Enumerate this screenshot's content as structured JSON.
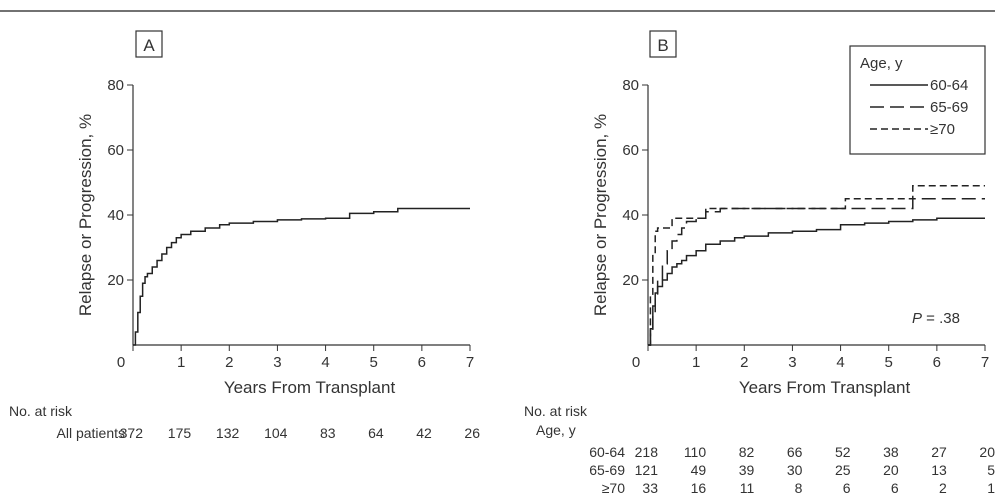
{
  "chart_data": [
    {
      "type": "line",
      "panel_label": "A",
      "xlabel": "Years From Transplant",
      "ylabel": "Relapse or Progression, %",
      "xlim": [
        0,
        7
      ],
      "ylim": [
        0,
        80
      ],
      "xticks": [
        0,
        1,
        2,
        3,
        4,
        5,
        6,
        7
      ],
      "yticks": [
        20,
        40,
        60,
        80
      ],
      "step": true,
      "series": [
        {
          "x": [
            0,
            0.05,
            0.1,
            0.15,
            0.2,
            0.25,
            0.3,
            0.4,
            0.5,
            0.6,
            0.7,
            0.8,
            0.9,
            1.0,
            1.2,
            1.5,
            1.8,
            2.0,
            2.5,
            3.0,
            3.5,
            4.0,
            4.5,
            5.0,
            5.5,
            6.0,
            7.0
          ],
          "values": [
            0,
            4,
            10,
            15,
            19,
            21,
            22,
            24,
            26,
            28,
            30,
            31.5,
            33,
            34,
            35,
            36,
            37,
            37.5,
            38,
            38.5,
            38.8,
            39,
            40.5,
            41,
            42,
            42,
            42
          ]
        }
      ],
      "risk_table": {
        "title": "No. at risk",
        "rows": [
          {
            "label": "All patients",
            "values": [
              "372",
              "175",
              "132",
              "104",
              "83",
              "64",
              "42",
              "26"
            ]
          }
        ]
      }
    },
    {
      "type": "line",
      "panel_label": "B",
      "xlabel": "Years From Transplant",
      "ylabel": "Relapse or Progression, %",
      "xlim": [
        0,
        7
      ],
      "ylim": [
        0,
        80
      ],
      "xticks": [
        0,
        1,
        2,
        3,
        4,
        5,
        6,
        7
      ],
      "yticks": [
        20,
        40,
        60,
        80
      ],
      "step": true,
      "legend": {
        "title": "Age, y",
        "position": "top-right"
      },
      "annotation": {
        "italic": "P",
        "text": " = .38"
      },
      "series": [
        {
          "name": "60-64",
          "dash": "",
          "x": [
            0,
            0.05,
            0.1,
            0.15,
            0.2,
            0.3,
            0.4,
            0.5,
            0.6,
            0.7,
            0.8,
            1.0,
            1.2,
            1.5,
            1.8,
            2.0,
            2.5,
            3.0,
            3.5,
            4.0,
            4.5,
            5.0,
            5.5,
            6.0,
            7.0
          ],
          "values": [
            0,
            5,
            12,
            16,
            18,
            20,
            22,
            24,
            25,
            26,
            27.5,
            29,
            31,
            32,
            33,
            33.5,
            34.5,
            35,
            35.5,
            37,
            37.5,
            38,
            38.5,
            39,
            39
          ]
        },
        {
          "name": "65-69",
          "dash": "14,6",
          "x": [
            0,
            0.05,
            0.1,
            0.15,
            0.2,
            0.3,
            0.4,
            0.5,
            0.6,
            0.7,
            0.8,
            1.0,
            1.2,
            1.5,
            2.0,
            3.0,
            4.0,
            5.0,
            5.5,
            7.0
          ],
          "values": [
            0,
            4,
            10,
            15,
            20,
            25,
            29,
            32,
            34,
            36,
            38,
            39,
            41,
            42,
            42,
            42,
            42,
            42,
            45,
            45
          ]
        },
        {
          "name": "≥70",
          "dash": "7,4",
          "x": [
            0,
            0.05,
            0.1,
            0.15,
            0.2,
            0.3,
            0.5,
            1.0,
            1.2,
            2.0,
            4.0,
            4.1,
            5.0,
            5.5,
            7.0
          ],
          "values": [
            0,
            15,
            28,
            35,
            36,
            36,
            39,
            39,
            42,
            42,
            42,
            45,
            45,
            49,
            49
          ]
        }
      ],
      "risk_table": {
        "title": "No. at risk",
        "subtitle": "Age, y",
        "rows": [
          {
            "label": "60-64",
            "values": [
              "218",
              "110",
              "82",
              "66",
              "52",
              "38",
              "27",
              "20"
            ]
          },
          {
            "label": "65-69",
            "values": [
              "121",
              "49",
              "39",
              "30",
              "25",
              "20",
              "13",
              "5"
            ]
          },
          {
            "label": "≥70",
            "values": [
              "33",
              "16",
              "11",
              "8",
              "6",
              "6",
              "2",
              "1"
            ]
          }
        ]
      }
    }
  ]
}
